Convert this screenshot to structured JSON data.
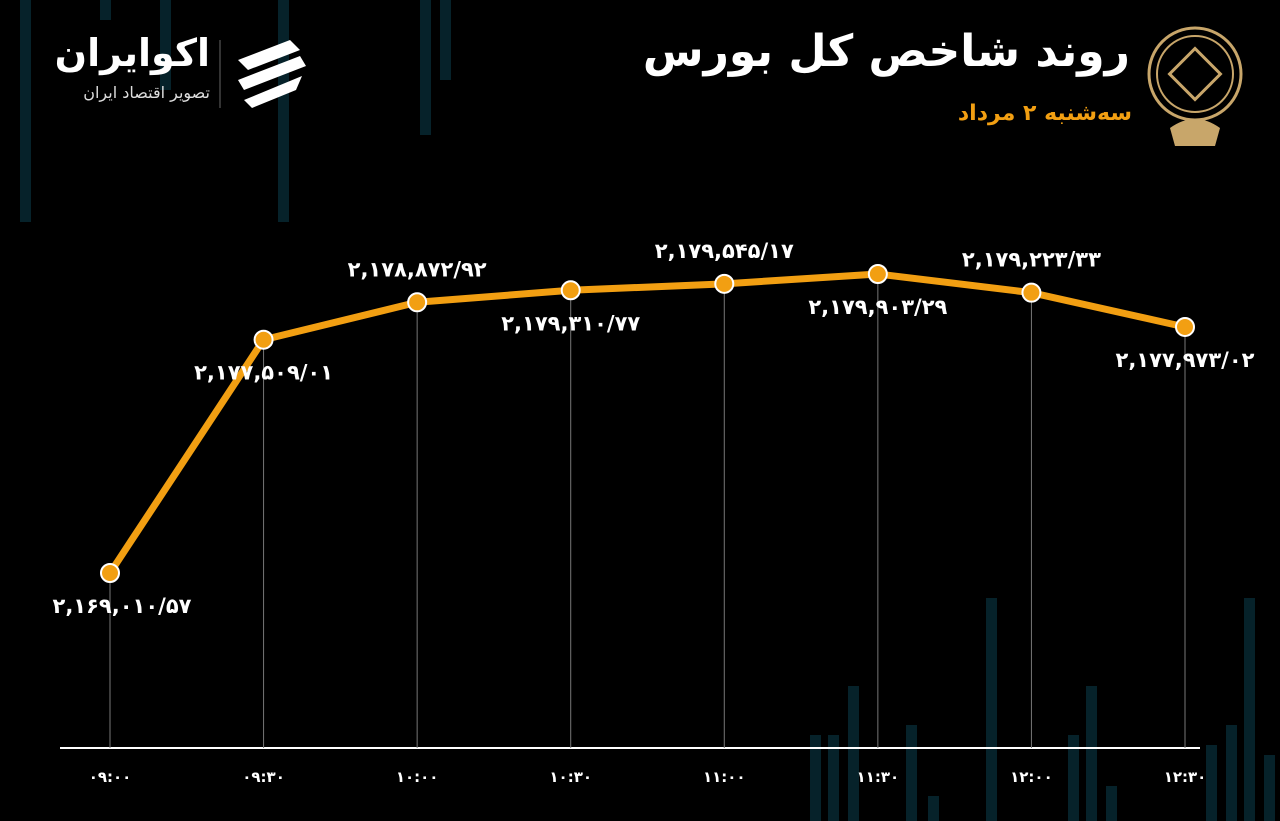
{
  "brand": {
    "name": "اکوایران",
    "tagline": "تصویر اقتصاد ایران"
  },
  "chart_data": {
    "type": "line",
    "title": "روند شاخص کل بورس",
    "subtitle": "سه‌شنبه ۲ مرداد",
    "categories": [
      "۰۹:۰۰",
      "۰۹:۳۰",
      "۱۰:۰۰",
      "۱۰:۳۰",
      "۱۱:۰۰",
      "۱۱:۳۰",
      "۱۲:۰۰",
      "۱۲:۳۰"
    ],
    "values": [
      2169010.57,
      2177509.01,
      2178872.92,
      2179310.77,
      2179545.17,
      2179903.29,
      2179223.33,
      2177973.02
    ],
    "value_labels": [
      "۲,۱۶۹,۰۱۰/۵۷",
      "۲,۱۷۷,۵۰۹/۰۱",
      "۲,۱۷۸,۸۷۲/۹۲",
      "۲,۱۷۹,۳۱۰/۷۷",
      "۲,۱۷۹,۵۴۵/۱۷",
      "۲,۱۷۹,۹۰۳/۲۹",
      "۲,۱۷۹,۲۲۳/۳۳",
      "۲,۱۷۷,۹۷۳/۰۲"
    ],
    "color": "#f29f12"
  }
}
